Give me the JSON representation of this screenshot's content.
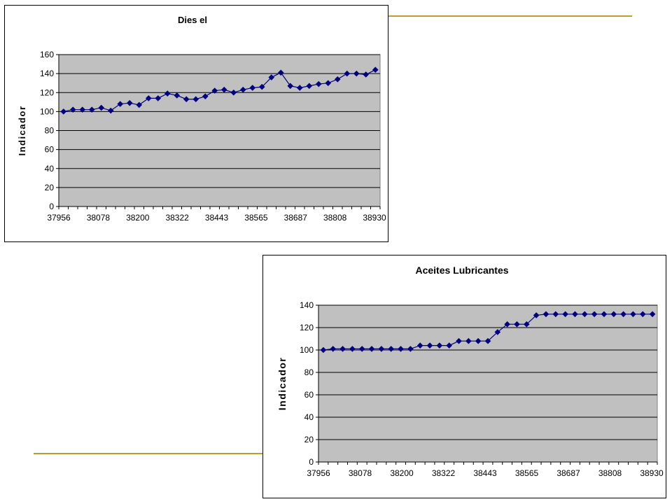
{
  "colors": {
    "plot_area": "#c0c0c0",
    "series": "#000080",
    "gridline": "#000000",
    "accent_line": "#b8a030"
  },
  "chart_data": [
    {
      "type": "line",
      "title": "Dies el",
      "xlabel": "",
      "ylabel": "Indicador",
      "x_tick_labels": [
        "37956",
        "38078",
        "38200",
        "38322",
        "38443",
        "38565",
        "38687",
        "38808",
        "38930"
      ],
      "ylim": [
        0,
        160
      ],
      "y_ticks": [
        0,
        20,
        40,
        60,
        80,
        100,
        120,
        140,
        160
      ],
      "grid": true,
      "legend": "none",
      "marker": "diamond",
      "series": [
        {
          "values": [
            100,
            102,
            102,
            102,
            104,
            101,
            108,
            109,
            107,
            114,
            114,
            119,
            117,
            113,
            113,
            116,
            122,
            123,
            120,
            123,
            125,
            126,
            136,
            141,
            127,
            125,
            127,
            129,
            130,
            134,
            140,
            140,
            139,
            144
          ]
        }
      ]
    },
    {
      "type": "line",
      "title": "Aceites Lubricantes",
      "xlabel": "",
      "ylabel": "Indicador",
      "x_tick_labels": [
        "37956",
        "38078",
        "38200",
        "38322",
        "38443",
        "38565",
        "38687",
        "38808",
        "38930"
      ],
      "ylim": [
        0,
        140
      ],
      "y_ticks": [
        0,
        20,
        40,
        60,
        80,
        100,
        120,
        140
      ],
      "grid": true,
      "legend": "none",
      "marker": "diamond",
      "series": [
        {
          "values": [
            100,
            101,
            101,
            101,
            101,
            101,
            101,
            101,
            101,
            101,
            104,
            104,
            104,
            104,
            108,
            108,
            108,
            108,
            116,
            123,
            123,
            123,
            131,
            132,
            132,
            132,
            132,
            132,
            132,
            132,
            132,
            132,
            132,
            132,
            132
          ]
        }
      ]
    }
  ]
}
